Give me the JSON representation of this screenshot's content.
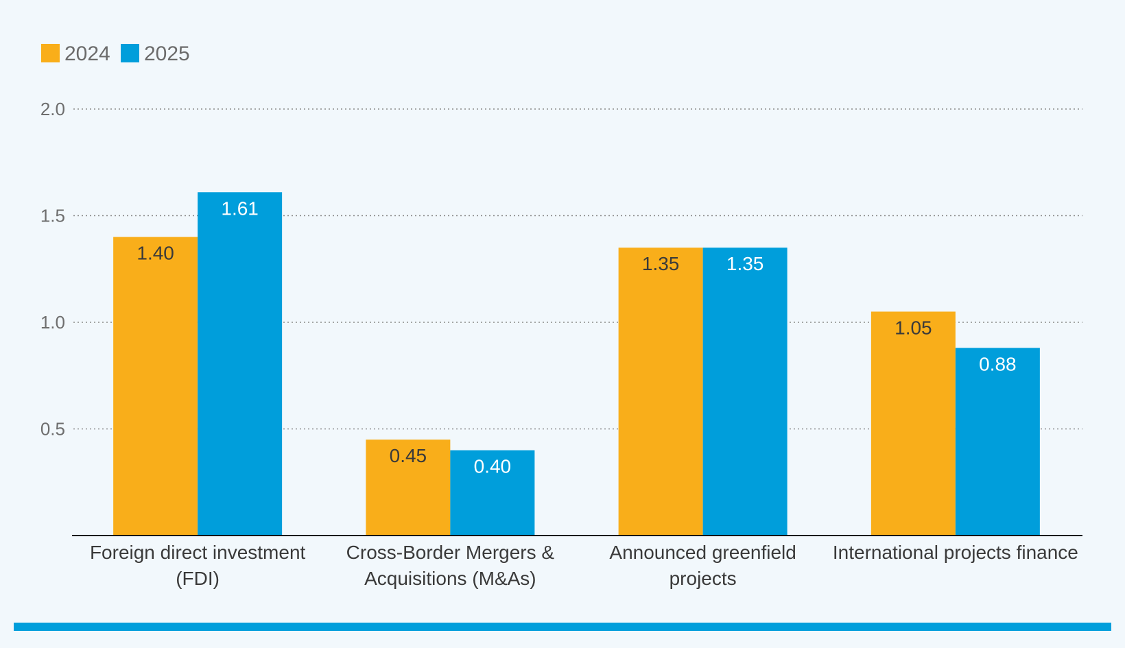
{
  "chart_data": {
    "type": "bar",
    "title": "",
    "xlabel": "",
    "ylabel": "",
    "ylim": [
      0,
      2.0
    ],
    "yticks": [
      0.5,
      1.0,
      1.5,
      2.0
    ],
    "ytick_labels": [
      "0.5",
      "1.0",
      "1.5",
      "2.0"
    ],
    "grid": true,
    "legend_position": "top-left",
    "categories": [
      [
        "Foreign direct investment",
        "(FDI)"
      ],
      [
        "Cross-Border Mergers &",
        "Acquisitions (M&As)"
      ],
      [
        "Announced greenfield",
        "projects"
      ],
      [
        "International projects finance"
      ]
    ],
    "series": [
      {
        "name": "2024",
        "color": "#f9ae1a",
        "values": [
          1.4,
          0.45,
          1.35,
          1.05
        ],
        "labels": [
          "1.40",
          "0.45",
          "1.35",
          "1.05"
        ]
      },
      {
        "name": "2025",
        "color": "#009edb",
        "values": [
          1.61,
          0.4,
          1.35,
          0.88
        ],
        "labels": [
          "1.61",
          "0.40",
          "1.35",
          "0.88"
        ]
      }
    ]
  },
  "colors": {
    "background": "#f2f8fc",
    "bottom_rule": "#009edb"
  }
}
